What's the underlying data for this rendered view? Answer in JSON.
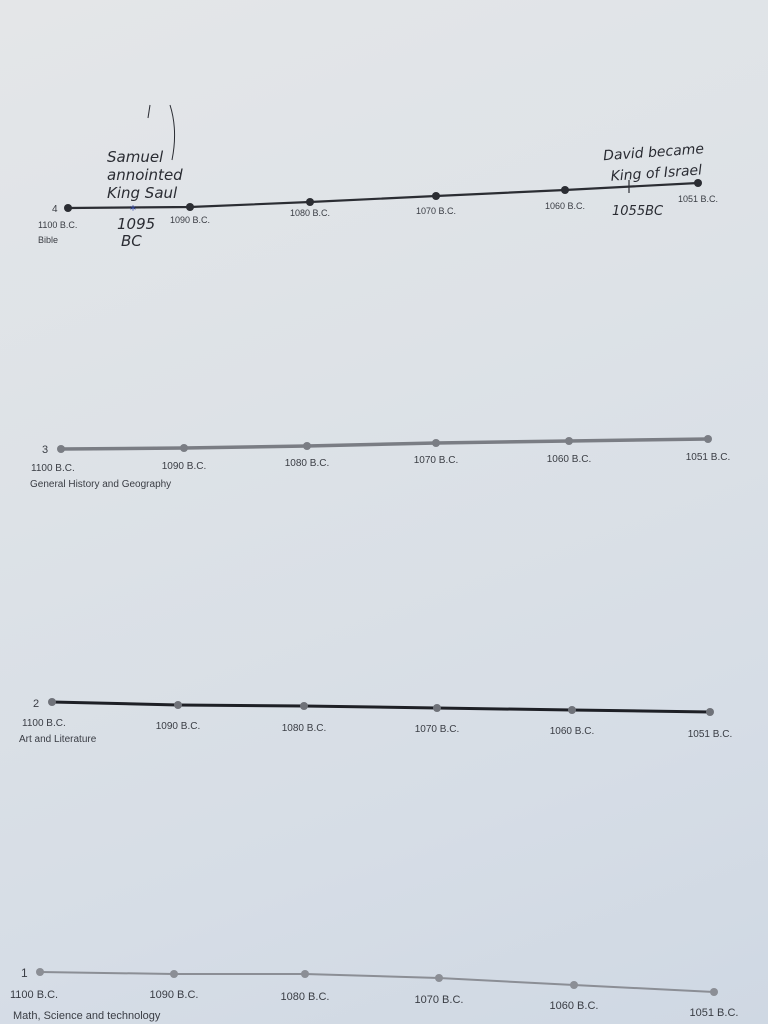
{
  "timelines": [
    {
      "number": "4",
      "subject": "Bible",
      "ticks": [
        "1100 B.C.",
        "1090 B.C.",
        "1080 B.C.",
        "1070 B.C.",
        "1060 B.C.",
        "1051 B.C."
      ],
      "line_color": "#2b2d33",
      "annotations": [
        {
          "text_lines": [
            "Samuel",
            "annointed",
            "King Saul"
          ],
          "date_lines": [
            "1095",
            "BC"
          ],
          "marker_color": "#2a3fa0"
        },
        {
          "text_lines": [
            "David became",
            "King of Israel"
          ],
          "date_lines": [
            "1055BC"
          ],
          "marker_color": "#2b2d33"
        }
      ]
    },
    {
      "number": "3",
      "subject": "General History and Geography",
      "ticks": [
        "1100 B.C.",
        "1090 B.C.",
        "1080 B.C.",
        "1070 B.C.",
        "1060 B.C.",
        "1051 B.C."
      ],
      "line_color": "#7a7d84",
      "annotations": []
    },
    {
      "number": "2",
      "subject": "Art and Literature",
      "ticks": [
        "1100 B.C.",
        "1090 B.C.",
        "1080 B.C.",
        "1070 B.C.",
        "1060 B.C.",
        "1051 B.C."
      ],
      "line_color": "#1e2026",
      "annotations": []
    },
    {
      "number": "1",
      "subject": "Math, Science and technology",
      "ticks": [
        "1100 B.C.",
        "1090 B.C.",
        "1080 B.C.",
        "1070 B.C.",
        "1060 B.C.",
        "1051 B.C."
      ],
      "line_color": "#8b8e95",
      "annotations": []
    }
  ]
}
